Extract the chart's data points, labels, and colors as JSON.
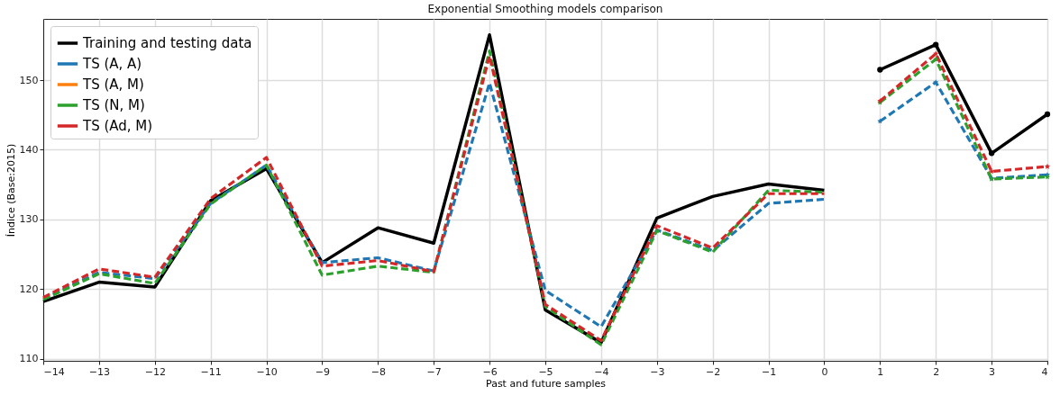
{
  "chart_data": {
    "type": "line",
    "title": "Exponential Smoothing models comparison",
    "xlabel": "Past and future samples",
    "ylabel": "Índice (Base:2015)",
    "xlim": [
      -14,
      4
    ],
    "xticks": [
      {
        "value": -14,
        "label": "−14"
      },
      {
        "value": -13,
        "label": "−13"
      },
      {
        "value": -12,
        "label": "−12"
      },
      {
        "value": -11,
        "label": "−11"
      },
      {
        "value": -10,
        "label": "−10"
      },
      {
        "value": -9,
        "label": "−9"
      },
      {
        "value": -8,
        "label": "−8"
      },
      {
        "value": -7,
        "label": "−7"
      },
      {
        "value": -6,
        "label": "−6"
      },
      {
        "value": -5,
        "label": "−5"
      },
      {
        "value": -4,
        "label": "−4"
      },
      {
        "value": -3,
        "label": "−3"
      },
      {
        "value": -2,
        "label": "−2"
      },
      {
        "value": -1,
        "label": "−1"
      },
      0,
      1,
      2,
      3,
      4
    ],
    "ylim": [
      109.7,
      158.8
    ],
    "yticks": [
      110,
      120,
      130,
      140,
      150
    ],
    "grid": true,
    "legend": "top left",
    "series": [
      {
        "name": "Training and testing data",
        "color": "#000000",
        "line_style": "solid",
        "x": [
          -14,
          -13,
          -12,
          -11,
          -10,
          -9,
          -8,
          -7,
          -6,
          -5,
          -4,
          -3,
          -2,
          -1,
          0
        ],
        "values": [
          118.2,
          121,
          120.3,
          132.7,
          137.3,
          123.8,
          128.8,
          126.6,
          156.5,
          117,
          112.3,
          130.2,
          133.3,
          135.1,
          134.2
        ]
      },
      {
        "name": "TS (A, A)",
        "color": "#1f77b4",
        "line_style": "dashed",
        "x": [
          -14,
          -13,
          -12,
          -11,
          -10,
          -9,
          -8,
          -7,
          -6,
          -5,
          -4,
          -3,
          -2,
          -1,
          0
        ],
        "values": [
          118.6,
          122.4,
          121.5,
          132.3,
          137.8,
          123.8,
          124.5,
          122.6,
          149.6,
          119.8,
          114.6,
          128.5,
          125.5,
          132.3,
          132.9
        ]
      },
      {
        "name": "TS (A, M)",
        "color": "#ff7f0e",
        "values": [
          null,
          null,
          null,
          null,
          null,
          null,
          null,
          null,
          null,
          null,
          null,
          null,
          null,
          null,
          null
        ]
      },
      {
        "name": "TS (N, M)",
        "color": "#2ca02c",
        "line_style": "dashed",
        "x": [
          -14,
          -13,
          -12,
          -11,
          -10,
          -9,
          -8,
          -7,
          -6,
          -5,
          -4,
          -3,
          -2,
          -1,
          0
        ],
        "values": [
          118.5,
          122.2,
          120.8,
          132.2,
          137.8,
          122,
          123.3,
          122.4,
          154.2,
          117.5,
          112,
          128.4,
          125.3,
          134.2,
          133.9
        ]
      },
      {
        "name": "TS (Ad, M)",
        "color": "#d62728",
        "line_style": "dashed",
        "x": [
          -14,
          -13,
          -12,
          -11,
          -10,
          -9,
          -8,
          -7,
          -6,
          -5,
          -4,
          -3,
          -2,
          -1,
          0
        ],
        "values": [
          118.8,
          122.9,
          121.7,
          133,
          138.9,
          123.3,
          124.1,
          122.5,
          153.5,
          117.8,
          112.6,
          129.1,
          125.9,
          133.7,
          133.7
        ]
      },
      {
        "color": "#000000",
        "line_style": "solid",
        "marker": "circle",
        "x": [
          1,
          2,
          3,
          4
        ],
        "values": [
          151.5,
          155.1,
          139.5,
          145.1
        ]
      },
      {
        "color": "#1f77b4",
        "line_style": "dashed",
        "marker": "star",
        "x": [
          1,
          2,
          3,
          4
        ],
        "values": [
          144.1,
          149.7,
          135.9,
          136.4
        ]
      },
      {
        "color": "#2ca02c",
        "line_style": "dashed",
        "marker": "star",
        "x": [
          1,
          2,
          3,
          4
        ],
        "values": [
          146.8,
          153,
          135.8,
          136.1
        ]
      },
      {
        "color": "#d62728",
        "line_style": "dashed",
        "marker": "star",
        "x": [
          1,
          2,
          3,
          4
        ],
        "values": [
          147,
          153.8,
          136.9,
          137.6
        ]
      }
    ]
  }
}
